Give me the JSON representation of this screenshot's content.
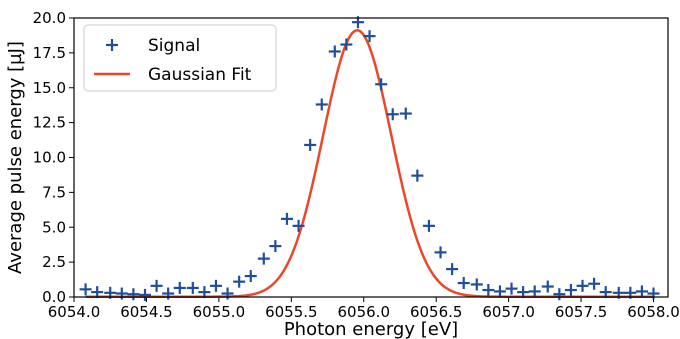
{
  "chart_data": {
    "type": "scatter",
    "title": "",
    "xlabel": "Photon energy [eV]",
    "ylabel": "Average pulse energy [µJ]",
    "xlim": [
      6054.0,
      6058.1
    ],
    "ylim": [
      0,
      20.0
    ],
    "xticks": [
      "6054.0",
      "6054.5",
      "6055.0",
      "6055.5",
      "6056.0",
      "6056.5",
      "6057.0",
      "6057.5",
      "6058.0"
    ],
    "yticks": [
      "0.0",
      "2.5",
      "5.0",
      "7.5",
      "10.0",
      "12.5",
      "15.0",
      "17.5",
      "20.0"
    ],
    "grid": false,
    "legend": "top-left",
    "series": [
      {
        "name": "Signal",
        "kind": "scatter",
        "marker": "plus",
        "color": "#1f4e9c",
        "points": [
          [
            6054.08,
            0.55
          ],
          [
            6054.16,
            0.35
          ],
          [
            6054.25,
            0.3
          ],
          [
            6054.33,
            0.25
          ],
          [
            6054.41,
            0.2
          ],
          [
            6054.49,
            0.15
          ],
          [
            6054.57,
            0.8
          ],
          [
            6054.65,
            0.25
          ],
          [
            6054.73,
            0.65
          ],
          [
            6054.82,
            0.65
          ],
          [
            6054.9,
            0.35
          ],
          [
            6054.98,
            0.8
          ],
          [
            6055.06,
            0.25
          ],
          [
            6055.14,
            1.1
          ],
          [
            6055.22,
            1.5
          ],
          [
            6055.31,
            2.75
          ],
          [
            6055.39,
            3.65
          ],
          [
            6055.47,
            5.6
          ],
          [
            6055.55,
            5.1
          ],
          [
            6055.63,
            10.9
          ],
          [
            6055.71,
            13.8
          ],
          [
            6055.8,
            17.6
          ],
          [
            6055.88,
            18.1
          ],
          [
            6055.96,
            19.7
          ],
          [
            6056.04,
            18.7
          ],
          [
            6056.12,
            15.25
          ],
          [
            6056.2,
            13.1
          ],
          [
            6056.29,
            13.15
          ],
          [
            6056.37,
            8.7
          ],
          [
            6056.45,
            5.1
          ],
          [
            6056.53,
            3.2
          ],
          [
            6056.61,
            2.0
          ],
          [
            6056.69,
            1.0
          ],
          [
            6056.78,
            0.9
          ],
          [
            6056.86,
            0.5
          ],
          [
            6056.94,
            0.4
          ],
          [
            6057.02,
            0.6
          ],
          [
            6057.1,
            0.35
          ],
          [
            6057.18,
            0.4
          ],
          [
            6057.27,
            0.75
          ],
          [
            6057.35,
            0.2
          ],
          [
            6057.43,
            0.5
          ],
          [
            6057.51,
            0.8
          ],
          [
            6057.59,
            0.95
          ],
          [
            6057.67,
            0.35
          ],
          [
            6057.76,
            0.3
          ],
          [
            6057.84,
            0.3
          ],
          [
            6057.92,
            0.4
          ],
          [
            6058.0,
            0.25
          ]
        ]
      },
      {
        "name": "Gaussian Fit",
        "kind": "line",
        "color": "#e8492a",
        "fit": {
          "amplitude": 19.1,
          "center": 6055.955,
          "sigma": 0.235,
          "baseline": 0.02
        },
        "x_range": [
          6054.08,
          6058.0
        ]
      }
    ]
  }
}
